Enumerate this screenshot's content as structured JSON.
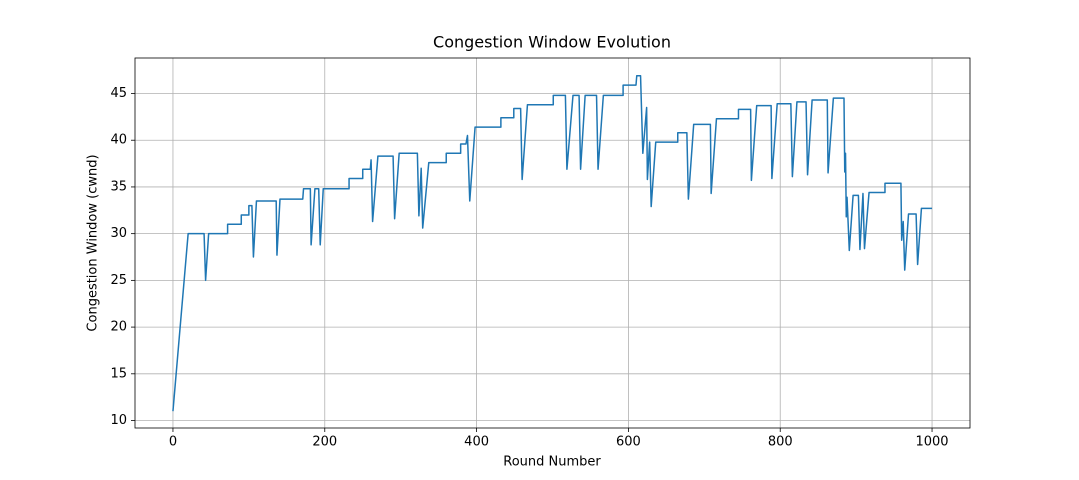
{
  "chart_data": {
    "type": "line",
    "title": "Congestion Window Evolution",
    "xlabel": "Round Number",
    "ylabel": "Congestion Window (cwnd)",
    "color": "#1f77b4",
    "grid": true,
    "xlim": [
      -50,
      1050
    ],
    "ylim": [
      9.2,
      48.8
    ],
    "xticks": [
      0,
      200,
      400,
      600,
      800,
      1000
    ],
    "yticks": [
      10,
      15,
      20,
      25,
      30,
      35,
      40,
      45
    ],
    "x": [
      0,
      20,
      41,
      43,
      47,
      72,
      72,
      90,
      90,
      100,
      100,
      104,
      106,
      110,
      136,
      137,
      141,
      171,
      172,
      181,
      182,
      187,
      192,
      194,
      198,
      232,
      232,
      250,
      250,
      260,
      261,
      263,
      270,
      290,
      292,
      298,
      322,
      324,
      327,
      329,
      337,
      360,
      360,
      379,
      379,
      386,
      388,
      391,
      398,
      432,
      432,
      449,
      449,
      458,
      460,
      467,
      501,
      501,
      517,
      519,
      527,
      535,
      537,
      543,
      558,
      560,
      567,
      593,
      593,
      610,
      611,
      616,
      619,
      624,
      625,
      628,
      630,
      636,
      665,
      665,
      677,
      679,
      686,
      708,
      709,
      716,
      745,
      745,
      761,
      762,
      769,
      788,
      789,
      796,
      814,
      816,
      822,
      834,
      836,
      842,
      862,
      863,
      870,
      884,
      885,
      886,
      887,
      888,
      891,
      896,
      903,
      905,
      909,
      911,
      917,
      938,
      938,
      959,
      960,
      962,
      964,
      969,
      979,
      981,
      986,
      1000
    ],
    "values": [
      11,
      30,
      30,
      25,
      30,
      30,
      31,
      31,
      32,
      32,
      33,
      33,
      27.5,
      33.5,
      33.5,
      27.7,
      33.7,
      33.7,
      34.8,
      34.8,
      28.8,
      34.8,
      34.8,
      28.8,
      34.8,
      34.8,
      35.9,
      35.9,
      36.9,
      36.9,
      37.9,
      31.3,
      38.3,
      38.3,
      31.6,
      38.6,
      38.6,
      31.9,
      37,
      30.6,
      37.6,
      37.6,
      38.6,
      38.6,
      39.6,
      39.6,
      40.5,
      33.5,
      41.4,
      41.4,
      42.4,
      42.4,
      43.4,
      43.4,
      35.8,
      43.8,
      43.8,
      44.8,
      44.8,
      36.9,
      44.8,
      44.8,
      36.9,
      44.8,
      44.8,
      36.9,
      44.8,
      44.8,
      45.9,
      45.9,
      46.9,
      46.9,
      38.6,
      43.5,
      35.8,
      39.8,
      32.9,
      39.8,
      39.8,
      40.8,
      40.8,
      33.7,
      41.7,
      41.7,
      34.3,
      42.3,
      42.3,
      43.3,
      43.3,
      35.7,
      43.7,
      43.7,
      35.9,
      43.9,
      43.9,
      36.1,
      44.1,
      44.1,
      36.3,
      44.3,
      44.3,
      36.5,
      44.5,
      44.5,
      36.6,
      38.6,
      31.8,
      33.9,
      28.2,
      34.1,
      34.1,
      28.3,
      34.3,
      28.4,
      34.4,
      34.4,
      35.4,
      35.4,
      29.3,
      31.3,
      26.1,
      32.1,
      32.1,
      26.7,
      32.7,
      32.7
    ]
  }
}
